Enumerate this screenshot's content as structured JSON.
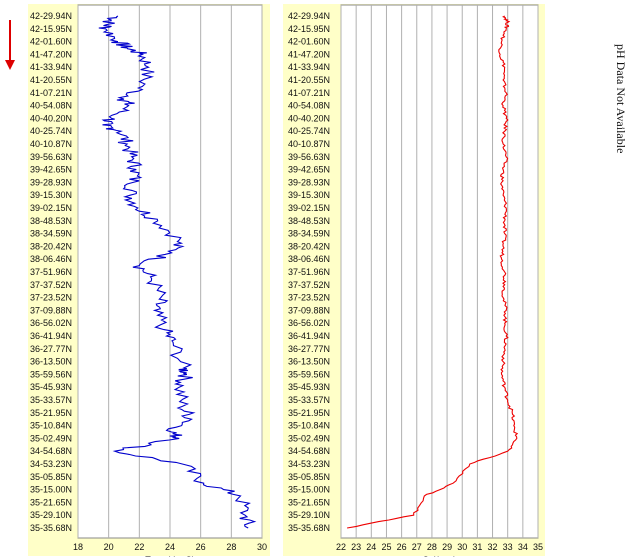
{
  "chart_data": [
    {
      "type": "line",
      "orientation": "vertical-profile",
      "xlabel": "Temp(degC)",
      "xlim": [
        18,
        30
      ],
      "x_ticks": [
        "18",
        "20",
        "22",
        "24",
        "26",
        "28",
        "30"
      ],
      "y_tick_labels": [
        "42-29.94N",
        "42-15.95N",
        "42-01.60N",
        "41-47.20N",
        "41-33.94N",
        "41-20.55N",
        "41-07.21N",
        "40-54.08N",
        "40-40.20N",
        "40-25.74N",
        "40-10.87N",
        "39-56.63N",
        "39-42.65N",
        "39-28.93N",
        "39-15.30N",
        "39-02.15N",
        "38-48.53N",
        "38-34.59N",
        "38-20.42N",
        "38-06.46N",
        "37-51.96N",
        "37-37.52N",
        "37-23.52N",
        "37-09.88N",
        "36-56.02N",
        "36-41.94N",
        "36-27.77N",
        "36-13.50N",
        "35-59.56N",
        "35-45.93N",
        "35-33.57N",
        "35-21.95N",
        "35-10.84N",
        "35-02.49N",
        "34-54.68N",
        "34-53.23N",
        "35-05.85N",
        "35-15.00N",
        "35-21.65N",
        "35-29.10N",
        "35-35.68N"
      ],
      "grid": true,
      "background": "#ffffc8",
      "series": [
        {
          "color": "#0000cc",
          "values": [
            20.6,
            20.0,
            19.8,
            20.6,
            21.2,
            22.2,
            22.6,
            22.2,
            21.0,
            21.3,
            20.2,
            19.6,
            20.8,
            21.2,
            21.5,
            21.8,
            21.6,
            21.4,
            21.9,
            23.2,
            24.6,
            24.1,
            22.0,
            22.8,
            23.4,
            23.0,
            23.6,
            24.2,
            24.9,
            25.1,
            24.6,
            24.8,
            25.4,
            24.1,
            24.6,
            20.4,
            24.8,
            26.2,
            28.6,
            28.9,
            29.1
          ],
          "pos": [
            0.0,
            0.5,
            1.0,
            2.0,
            2.5,
            3.0,
            4.0,
            5.5,
            6.5,
            7.0,
            8.0,
            8.5,
            9.0,
            10.0,
            11.0,
            12.0,
            13.0,
            14.0,
            15.0,
            16.0,
            17.5,
            18.5,
            19.5,
            20.5,
            22.0,
            23.0,
            24.5,
            25.5,
            27.5,
            28.0,
            29.0,
            30.5,
            31.5,
            32.5,
            33.0,
            34.0,
            35.0,
            36.5,
            37.5,
            39.0,
            40.0
          ]
        }
      ]
    },
    {
      "type": "line",
      "orientation": "vertical-profile",
      "xlabel": "Sal(psu)",
      "xlim": [
        22,
        35
      ],
      "x_ticks": [
        "22",
        "23",
        "24",
        "25",
        "26",
        "27",
        "28",
        "29",
        "30",
        "31",
        "32",
        "33",
        "34",
        "35"
      ],
      "y_tick_labels": [
        "42-29.94N",
        "42-15.95N",
        "42-01.60N",
        "41-47.20N",
        "41-33.94N",
        "41-20.55N",
        "41-07.21N",
        "40-54.08N",
        "40-40.20N",
        "40-25.74N",
        "40-10.87N",
        "39-56.63N",
        "39-42.65N",
        "39-28.93N",
        "39-15.30N",
        "39-02.15N",
        "38-48.53N",
        "38-34.59N",
        "38-20.42N",
        "38-06.46N",
        "37-51.96N",
        "37-37.52N",
        "37-23.52N",
        "37-09.88N",
        "36-56.02N",
        "36-41.94N",
        "36-27.77N",
        "36-13.50N",
        "35-59.56N",
        "35-45.93N",
        "35-33.57N",
        "35-21.95N",
        "35-10.84N",
        "35-02.49N",
        "34-54.68N",
        "34-53.23N",
        "35-05.85N",
        "35-15.00N",
        "35-21.65N",
        "35-29.10N",
        "35-35.68N"
      ],
      "grid": true,
      "background": "#ffffc8",
      "series": [
        {
          "color": "#ee0000",
          "values": [
            32.8,
            33.0,
            32.9,
            32.6,
            32.5,
            32.8,
            32.7,
            32.9,
            32.7,
            32.9,
            32.8,
            32.7,
            32.9,
            32.7,
            32.6,
            32.7,
            32.9,
            32.8,
            32.8,
            32.7,
            32.6,
            32.8,
            32.8,
            32.7,
            32.9,
            32.8,
            32.9,
            32.8,
            32.7,
            32.6,
            32.8,
            33.0,
            33.3,
            33.4,
            33.6,
            33.0,
            30.5,
            29.4,
            27.5,
            26.8,
            22.4
          ],
          "pos": [
            0.0,
            0.5,
            1.0,
            2.0,
            3.0,
            4.0,
            5.0,
            6.0,
            7.0,
            8.0,
            9.0,
            10.0,
            11.0,
            12.0,
            13.0,
            14.0,
            15.0,
            16.0,
            17.0,
            18.0,
            19.0,
            20.0,
            21.0,
            22.0,
            23.0,
            24.0,
            25.0,
            26.0,
            27.0,
            28.0,
            29.0,
            30.0,
            31.0,
            32.0,
            33.0,
            34.0,
            35.0,
            36.5,
            37.5,
            39.0,
            40.0
          ]
        }
      ]
    }
  ],
  "side_note": "pH Data Not Available",
  "arrow_color": "#dd0000"
}
